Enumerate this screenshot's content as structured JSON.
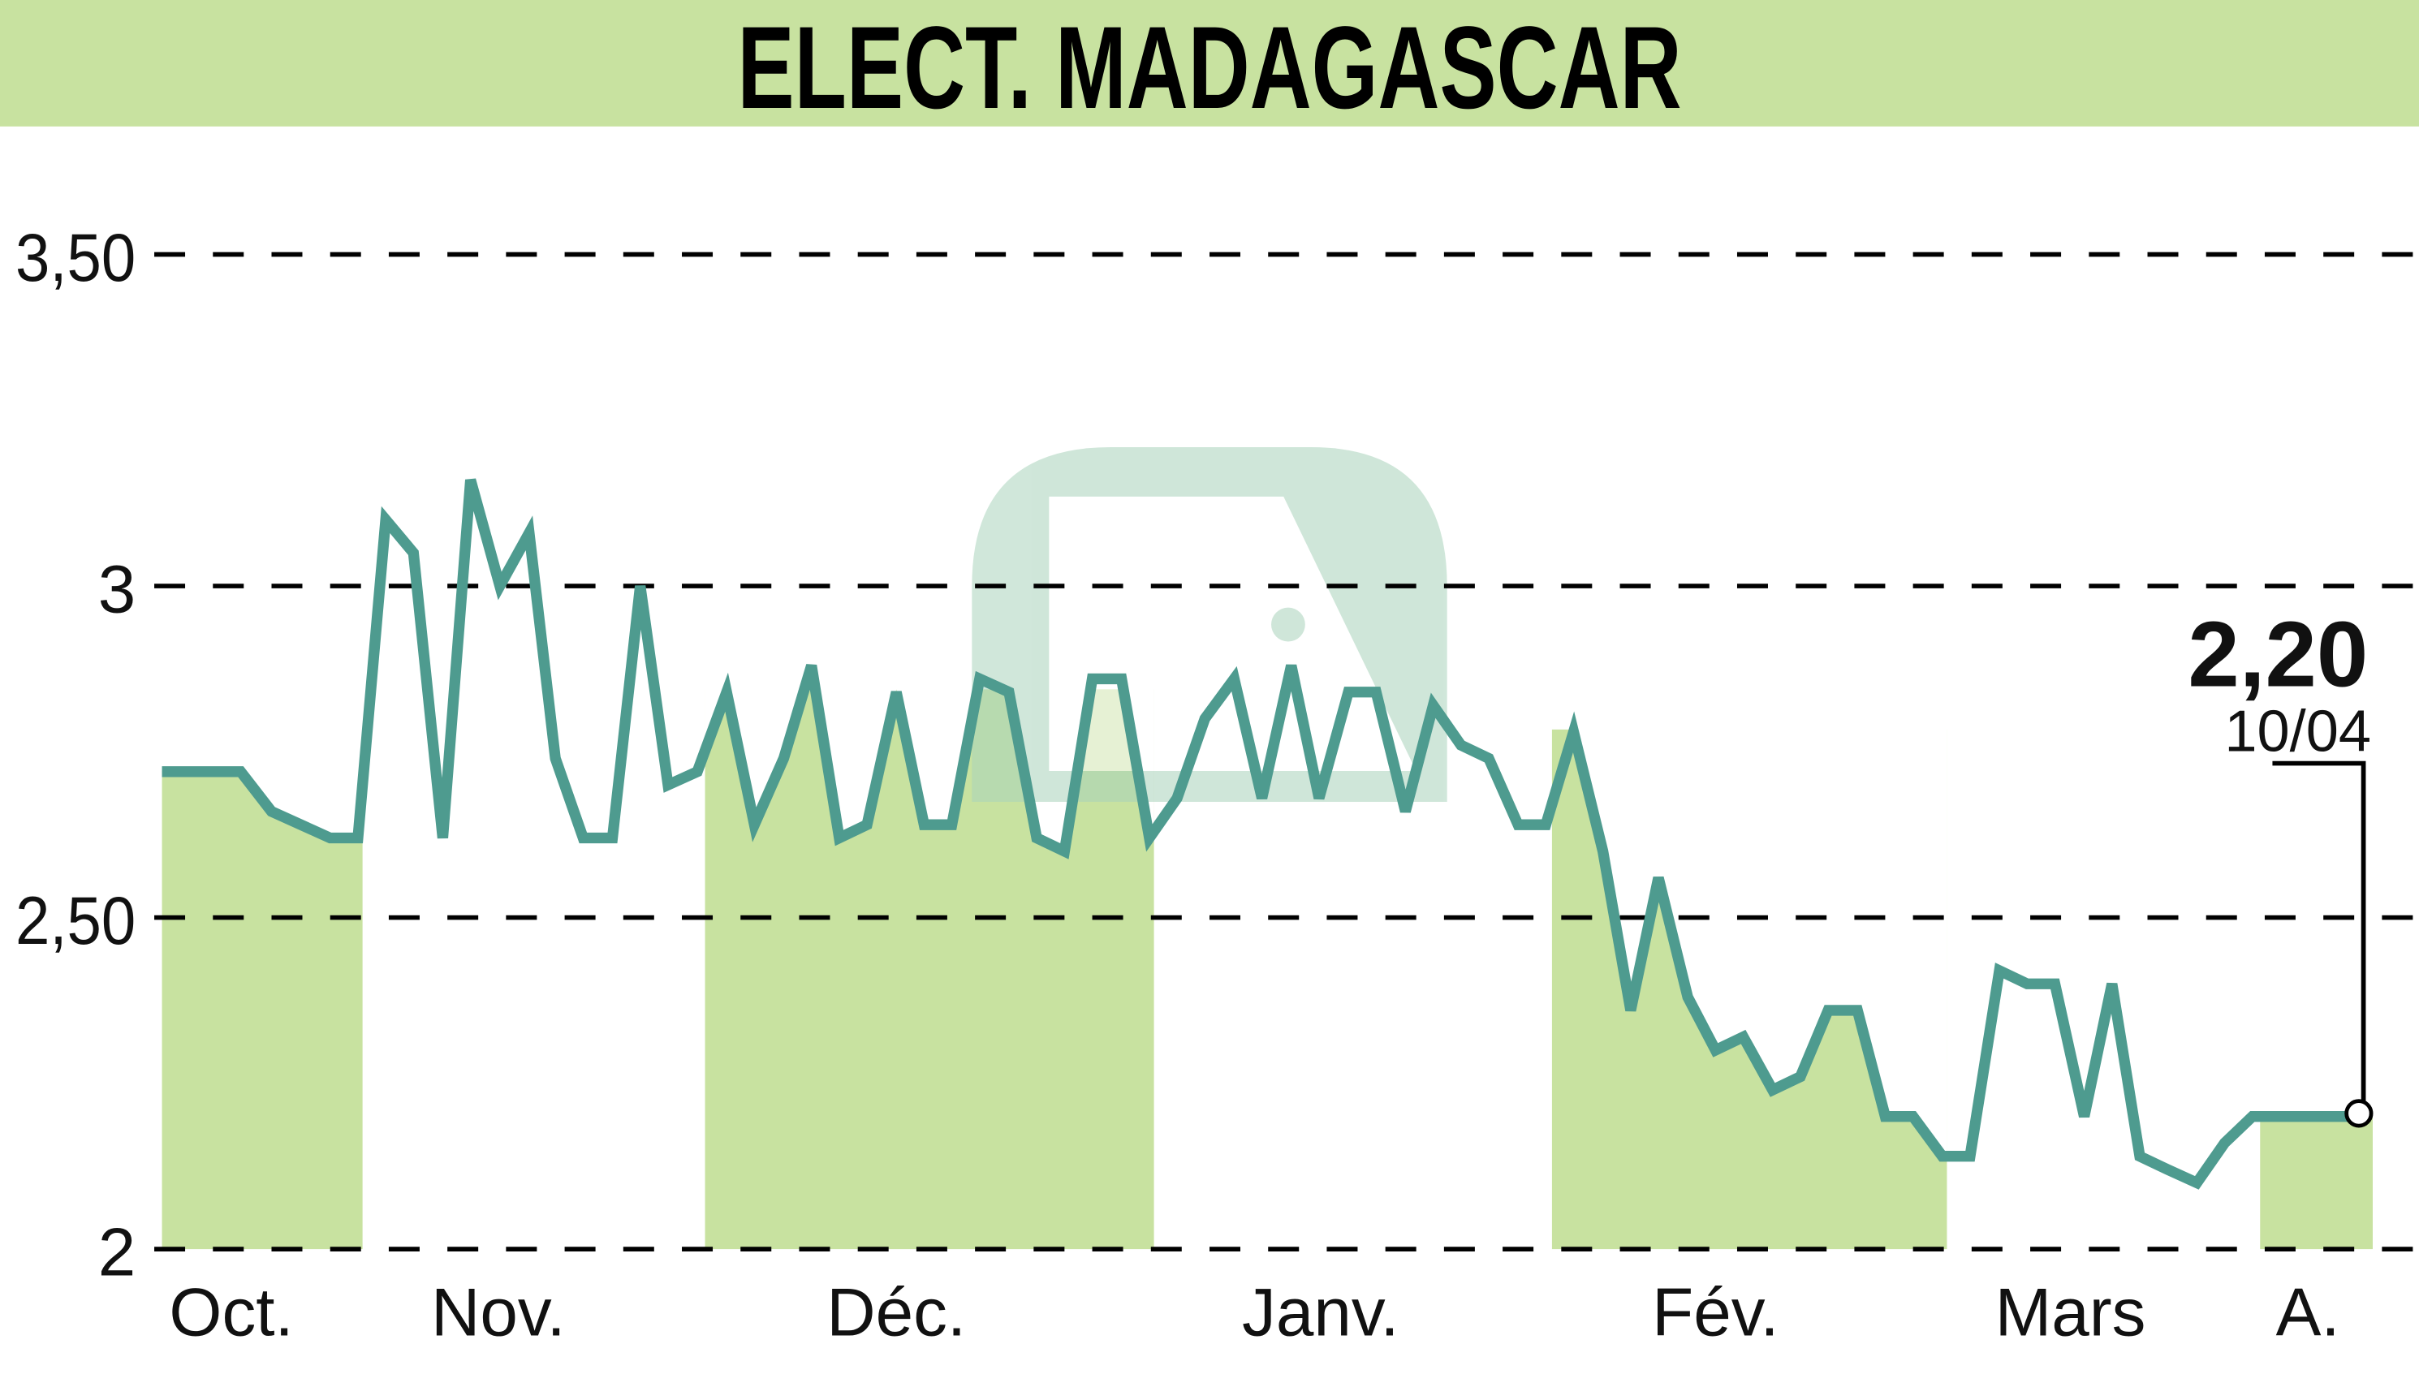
{
  "header": {
    "title": "ELECT. MADAGASCAR"
  },
  "colors": {
    "header_bg": "#c8e2a0",
    "band_fill": "#c8e2a0",
    "line": "#4e9b8f",
    "grid": "#000000",
    "watermark": "#c5dfcf"
  },
  "last_point": {
    "value": "2,20",
    "date": "10/04"
  },
  "y_ticks": [
    {
      "label": "3,50",
      "value": 3.5
    },
    {
      "label": "3",
      "value": 3.0
    },
    {
      "label": "2,50",
      "value": 2.5
    },
    {
      "label": "2",
      "value": 2.0
    }
  ],
  "x_ticks": [
    {
      "label": "Oct.",
      "x": 150
    },
    {
      "label": "Nov.",
      "x": 323
    },
    {
      "label": "Déc.",
      "x": 581
    },
    {
      "label": "Janv.",
      "x": 856
    },
    {
      "label": "Fév.",
      "x": 1112
    },
    {
      "label": "Mars",
      "x": 1342
    },
    {
      "label": "A.",
      "x": 1496
    }
  ],
  "chart_data": {
    "type": "line",
    "title": "ELECT. MADAGASCAR",
    "xlabel": "",
    "ylabel": "",
    "ylim": [
      2.0,
      3.5
    ],
    "grid": true,
    "legend": "none",
    "categories": [
      "Oct.",
      "Nov.",
      "Déc.",
      "Janv.",
      "Fév.",
      "Mars",
      "A."
    ],
    "shaded_months": [
      "Oct.",
      "Déc.",
      "Fév.",
      "A."
    ],
    "series": [
      {
        "name": "ELECT. MADAGASCAR",
        "x": [
          105,
          156,
          176,
          214,
          232,
          250,
          268,
          287,
          305,
          324,
          343,
          360,
          378,
          397,
          415,
          433,
          452,
          471,
          489,
          508,
          526,
          544,
          562,
          581,
          599,
          617,
          635,
          654,
          672,
          690,
          708,
          727,
          745,
          763,
          781,
          800,
          818,
          837,
          855,
          874,
          892,
          911,
          929,
          947,
          965,
          984,
          1002,
          1020,
          1039,
          1057,
          1075,
          1094,
          1112,
          1130,
          1149,
          1167,
          1185,
          1204,
          1222,
          1240,
          1259,
          1277,
          1296,
          1314,
          1332,
          1351,
          1369,
          1387,
          1405,
          1424,
          1442,
          1460,
          1479,
          1497,
          1515,
          1529
        ],
        "values": [
          2.72,
          2.72,
          2.66,
          2.62,
          2.62,
          3.1,
          3.05,
          2.62,
          3.16,
          3.0,
          3.08,
          2.74,
          2.62,
          2.62,
          3.0,
          2.7,
          2.72,
          2.84,
          2.64,
          2.74,
          2.88,
          2.62,
          2.64,
          2.84,
          2.64,
          2.64,
          2.86,
          2.84,
          2.62,
          2.6,
          2.86,
          2.86,
          2.62,
          2.68,
          2.8,
          2.86,
          2.68,
          2.88,
          2.68,
          2.84,
          2.84,
          2.66,
          2.82,
          2.76,
          2.74,
          2.64,
          2.64,
          2.78,
          2.6,
          2.36,
          2.56,
          2.38,
          2.3,
          2.32,
          2.24,
          2.26,
          2.36,
          2.36,
          2.2,
          2.2,
          2.14,
          2.14,
          2.42,
          2.4,
          2.4,
          2.2,
          2.4,
          2.14,
          2.12,
          2.1,
          2.16,
          2.2,
          2.2,
          2.2,
          2.2,
          2.2
        ]
      }
    ],
    "annotations": [
      {
        "text": "2,20",
        "sub": "10/04"
      }
    ]
  }
}
